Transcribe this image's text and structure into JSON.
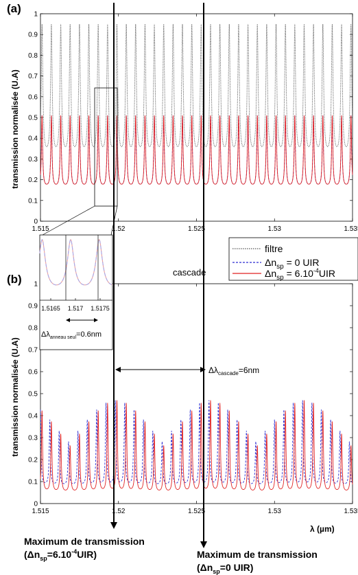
{
  "chart_data": [
    {
      "panel": "(a)",
      "type": "line",
      "ylabel": "transmission  normalisée (U.A)",
      "xlim": [
        1.515,
        1.535
      ],
      "ylim": [
        0,
        1
      ],
      "xticks": [
        "1.515",
        "1.52",
        "1.525",
        "1.53",
        "1.535"
      ],
      "yticks": [
        "0",
        "0.1",
        "0.2",
        "0.3",
        "0.4",
        "0.5",
        "0.6",
        "0.7",
        "0.8",
        "0.9",
        "1"
      ],
      "series": [
        {
          "name": "filtre",
          "color": "#555555",
          "style": "dotted",
          "period_um": 0.0006,
          "min": 0.3,
          "max": 0.95,
          "peak_at_um": 1.5199
        },
        {
          "name": "Δn_sp = 0 UIR",
          "color": "#2a2ad0",
          "style": "dashed",
          "period_um": 0.0006,
          "min": 0.16,
          "max": 0.51,
          "peak_at_um": 1.5175
        },
        {
          "name": "Δn_sp = 6.10⁻⁴UIR",
          "color": "#e02020",
          "style": "solid",
          "period_um": 0.0006,
          "min": 0.16,
          "max": 0.51,
          "peak_at_um": 1.5169
        }
      ]
    },
    {
      "panel": "(b)",
      "type": "line",
      "ylabel": "transmission  normalisée (U.A)",
      "xlabel": "λ (µm)",
      "xlim": [
        1.515,
        1.535
      ],
      "ylim": [
        0,
        1
      ],
      "xticks": [
        "1.515",
        "1.52",
        "1.525",
        "1.53",
        "1.535"
      ],
      "yticks": [
        "0",
        "0.1",
        "0.2",
        "0.3",
        "0.4",
        "0.5",
        "0.6",
        "0.7",
        "0.8",
        "0.9",
        "1"
      ],
      "series": [
        {
          "name": "Δn_sp = 0 UIR",
          "color": "#2a2ad0",
          "style": "dashed",
          "period_um": 0.0006,
          "envelope_peak_um": 1.5258,
          "envelope_max": 0.47,
          "baseline": 0.08
        },
        {
          "name": "Δn_sp = 6.10⁻⁴UIR",
          "color": "#e02020",
          "style": "solid",
          "period_um": 0.0006,
          "envelope_peak_um": 1.5199,
          "envelope_max": 0.47,
          "baseline": 0.05
        }
      ]
    }
  ],
  "labels": {
    "panel_a": "(a)",
    "panel_b": "(b)",
    "ylabel": "transmission  normalisée (U.A)",
    "xlabel_lambda": "λ",
    "xlabel_unit": "(µm)",
    "cascade": "cascade",
    "legend_filtre": "filtre",
    "legend_dn0_prefix": "Δn",
    "legend_dn0_sub": "sp",
    "legend_dn0_suffix": " = 0 UIR",
    "legend_dn6_prefix": "Δn",
    "legend_dn6_sub": "sp",
    "legend_dn6_mid": " = 6.10",
    "legend_dn6_sup": "-4",
    "legend_dn6_suffix": "UIR",
    "delta_cascade_prefix": "Δλ",
    "delta_cascade_sub": "cascade",
    "delta_cascade_value": "=6nm",
    "delta_ring_prefix": "Δλ",
    "delta_ring_sub": "anneau  seul",
    "delta_ring_value": "=0.6nm",
    "inset_ticks": [
      "1.5165",
      "1.517",
      "1.5175"
    ],
    "max1_line1": "Maximum de transmission",
    "max1_line2_a": "(Δn",
    "max1_line2_sub": "sp",
    "max1_line2_b": "=6.10",
    "max1_line2_sup": "-4",
    "max1_line2_c": "UIR)",
    "max2_line1": "Maximum de transmission",
    "max2_line2_a": "(Δn",
    "max2_line2_sub": "sp",
    "max2_line2_b": "=0 UIR)"
  }
}
